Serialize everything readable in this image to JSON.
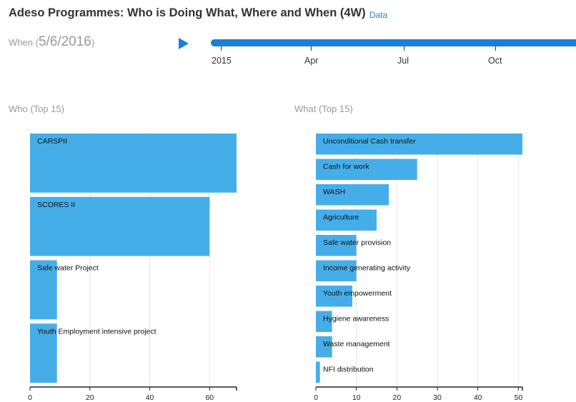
{
  "header": {
    "title": "Adeso Programmes: Who is Doing What, Where and When (4W)",
    "data_link": "Data"
  },
  "when": {
    "prefix": "When (",
    "date": "5/6/2016",
    "suffix": ")",
    "play_icon": "play-icon",
    "timeline_labels": [
      "2015",
      "Apr",
      "Jul",
      "Oct"
    ]
  },
  "colors": {
    "bar": "#45aee8",
    "accent": "#1a7fd6"
  },
  "who": {
    "title": "Who (Top 15)"
  },
  "what": {
    "title": "What (Top 15)"
  },
  "chart_data": [
    {
      "type": "bar",
      "orientation": "horizontal",
      "title": "Who (Top 15)",
      "categories": [
        "CARSPII",
        "SCORES II",
        "Safe water Project",
        "Youth Employment intensive project"
      ],
      "values": [
        69,
        60,
        9,
        9
      ],
      "xlim": [
        0,
        69
      ],
      "xticks": [
        0,
        20,
        40,
        60
      ],
      "grid": true
    },
    {
      "type": "bar",
      "orientation": "horizontal",
      "title": "What (Top 15)",
      "categories": [
        "Unconditional Cash transfer",
        "Cash for work",
        "WASH",
        "Agriculture",
        "Safe water provision",
        "Income generating activity",
        "Youth empowerment",
        "Hygiene awareness",
        "Waste management",
        "NFI distribution"
      ],
      "values": [
        51,
        25,
        18,
        15,
        10,
        10,
        9,
        4,
        4,
        1
      ],
      "xlim": [
        0,
        51
      ],
      "xticks": [
        0,
        10,
        20,
        30,
        40,
        50
      ],
      "grid": true
    }
  ]
}
